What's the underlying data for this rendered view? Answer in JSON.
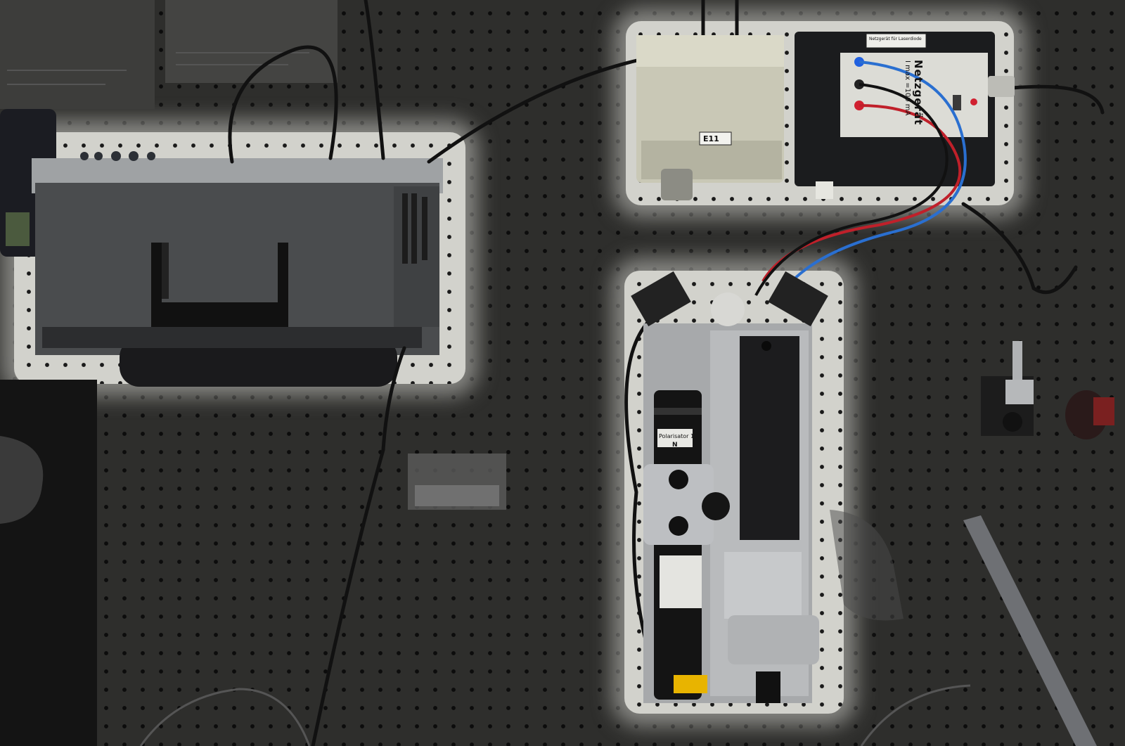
{
  "equipment": {
    "dark_box_label": "E11",
    "power_supply": {
      "title": "Netzgerät",
      "rating": "I max =100 mA",
      "header_note": "Netzgerät für Laserdiode"
    },
    "laser_tube_tags": [
      "Polarisator 1",
      "N"
    ]
  },
  "colors": {
    "highlight": "#d2d2cc",
    "board_dark": "#2e2e2c",
    "cable_red": "#c0202a",
    "cable_blue": "#2a6fd0",
    "warning_label": "#e8b400"
  }
}
